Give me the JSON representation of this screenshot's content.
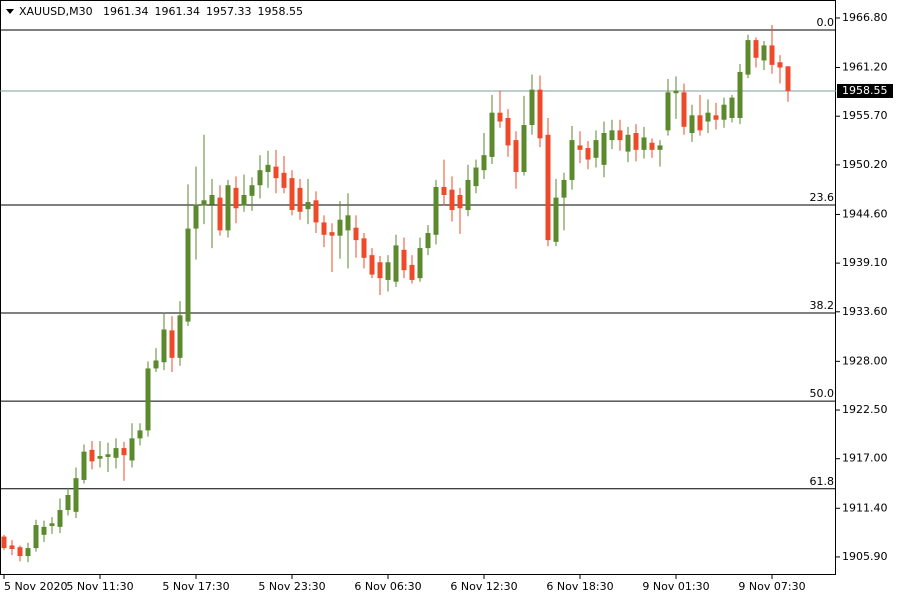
{
  "chart_data": {
    "type": "candlestick",
    "symbol": "XAUUSD,M30",
    "header_values": [
      1961.34,
      1961.34,
      1957.33,
      1958.55
    ],
    "categories": [
      "5 Nov 2020",
      null,
      null,
      null,
      null,
      null,
      null,
      null,
      null,
      null,
      null,
      null,
      "5 Nov 11:30",
      null,
      null,
      null,
      null,
      null,
      null,
      null,
      null,
      null,
      null,
      null,
      "5 Nov 17:30",
      null,
      null,
      null,
      null,
      null,
      null,
      null,
      null,
      null,
      null,
      null,
      "5 Nov 23:30",
      null,
      null,
      null,
      null,
      null,
      null,
      null,
      null,
      null,
      null,
      null,
      "6 Nov 06:30",
      null,
      null,
      null,
      null,
      null,
      null,
      null,
      null,
      null,
      null,
      null,
      "6 Nov 12:30",
      null,
      null,
      null,
      null,
      null,
      null,
      null,
      null,
      null,
      null,
      null,
      "6 Nov 18:30",
      null,
      null,
      null,
      null,
      null,
      null,
      null,
      null,
      null,
      null,
      null,
      "9 Nov 01:30",
      null,
      null,
      null,
      null,
      null,
      null,
      null,
      null,
      null,
      null,
      null,
      "9 Nov 07:30",
      null,
      null
    ],
    "open": [
      1908.2,
      1907.2,
      1907.0,
      1906.0,
      1906.9,
      1908.4,
      1909.4,
      1909.3,
      1911.2,
      1911.0,
      1914.6,
      1918.0,
      1917.0,
      1917.2,
      1917.1,
      1918.2,
      1916.8,
      1919.3,
      1920.2,
      1927.2,
      1927.9,
      1931.5,
      1928.4,
      1932.5,
      1943.0,
      1945.6,
      1945.7,
      1946.5,
      1942.8,
      1947.6,
      1945.6,
      1946.7,
      1947.9,
      1949.4,
      1950.0,
      1949.3,
      1948.7,
      1947.6,
      1945.2,
      1946.2,
      1943.7,
      1942.6,
      1942.2,
      1942.8,
      1943.1,
      1941.9,
      1940.0,
      1939.2,
      1937.2,
      1937.0,
      1940.6,
      1938.9,
      1937.4,
      1940.8,
      1942.3,
      1947.7,
      1947.4,
      1946.8,
      1945.1,
      1947.8,
      1949.6,
      1951.1,
      1956.1,
      1955.5,
      1953.0,
      1949.4,
      1954.7,
      1958.7,
      1953.6,
      1941.5,
      1946.5,
      1948.5,
      1952.4,
      1952.1,
      1951.0,
      1950.2,
      1953.0,
      1954.1,
      1951.7,
      1953.8,
      1951.9,
      1952.7,
      1951.9,
      1954.1,
      1958.3,
      1958.4,
      1953.8,
      1955.8,
      1955.1,
      1955.8,
      1955.3,
      1955.5,
      1955.5,
      1960.4,
      1964.3,
      1962.0,
      1963.7,
      1961.8,
      1961.34
    ],
    "high": [
      1908.4,
      1907.8,
      1907.2,
      1907.5,
      1910.1,
      1910.0,
      1910.4,
      1912.5,
      1913.7,
      1916.0,
      1918.6,
      1919.0,
      1919.0,
      1918.8,
      1919.3,
      1918.9,
      1921.0,
      1921.0,
      1928.0,
      1929.5,
      1933.5,
      1933.1,
      1934.8,
      1948.0,
      1950.0,
      1953.6,
      1948.6,
      1947.9,
      1948.5,
      1948.9,
      1949.1,
      1948.8,
      1951.3,
      1951.8,
      1951.9,
      1951.2,
      1949.6,
      1948.6,
      1948.6,
      1947.2,
      1944.5,
      1943.6,
      1946.1,
      1947.0,
      1944.5,
      1942.5,
      1940.8,
      1939.9,
      1940.0,
      1942.3,
      1942.0,
      1940.0,
      1942.0,
      1943.4,
      1948.5,
      1950.8,
      1948.9,
      1947.6,
      1950.2,
      1950.8,
      1953.8,
      1958.1,
      1958.6,
      1956.5,
      1954.0,
      1958.0,
      1960.4,
      1960.3,
      1955.5,
      1948.6,
      1949.3,
      1954.6,
      1954.0,
      1952.9,
      1954.1,
      1955.1,
      1955.3,
      1955.3,
      1954.5,
      1954.8,
      1954.5,
      1953.2,
      1953.0,
      1959.9,
      1960.2,
      1959.4,
      1957.0,
      1958.1,
      1957.6,
      1957.2,
      1957.8,
      1958.1,
      1961.6,
      1964.9,
      1964.6,
      1964.2,
      1966.0,
      1962.6,
      1961.34
    ],
    "low": [
      1906.7,
      1906.1,
      1905.4,
      1905.3,
      1906.5,
      1907.6,
      1908.5,
      1908.6,
      1910.6,
      1910.3,
      1914.2,
      1915.8,
      1916.0,
      1915.5,
      1915.9,
      1914.5,
      1916.0,
      1918.5,
      1919.5,
      1926.8,
      1927.0,
      1926.8,
      1927.5,
      1932.0,
      1939.5,
      1943.5,
      1940.8,
      1942.2,
      1942.0,
      1943.6,
      1944.9,
      1945.0,
      1946.4,
      1947.6,
      1947.0,
      1947.0,
      1944.5,
      1944.0,
      1943.5,
      1942.5,
      1940.9,
      1938.1,
      1939.6,
      1938.5,
      1939.7,
      1938.5,
      1937.4,
      1935.5,
      1935.9,
      1936.4,
      1937.4,
      1936.8,
      1937.0,
      1940.0,
      1941.2,
      1945.6,
      1943.8,
      1942.4,
      1944.4,
      1947.0,
      1948.6,
      1950.3,
      1954.4,
      1951.1,
      1947.5,
      1949.0,
      1953.6,
      1952.2,
      1941.0,
      1941.0,
      1942.8,
      1947.4,
      1950.4,
      1949.7,
      1949.9,
      1948.8,
      1952.0,
      1951.8,
      1950.5,
      1950.6,
      1950.9,
      1951.0,
      1950.0,
      1953.5,
      1955.4,
      1953.6,
      1952.8,
      1953.5,
      1953.8,
      1954.2,
      1954.4,
      1955.0,
      1954.8,
      1960.0,
      1961.2,
      1960.9,
      1960.5,
      1959.4,
      1957.33
    ],
    "close": [
      1906.9,
      1906.8,
      1906.0,
      1906.9,
      1909.5,
      1909.3,
      1909.7,
      1911.2,
      1912.9,
      1914.8,
      1917.8,
      1916.7,
      1917.3,
      1917.5,
      1918.2,
      1917.4,
      1919.3,
      1920.2,
      1927.2,
      1928.1,
      1931.6,
      1928.4,
      1933.2,
      1943.0,
      1945.7,
      1946.2,
      1946.8,
      1942.8,
      1947.9,
      1945.3,
      1946.8,
      1947.9,
      1949.6,
      1950.2,
      1948.7,
      1947.6,
      1945.1,
      1944.9,
      1946.0,
      1943.7,
      1942.3,
      1942.2,
      1944.0,
      1944.5,
      1941.7,
      1939.7,
      1937.8,
      1937.4,
      1939.2,
      1941.1,
      1938.3,
      1937.2,
      1940.8,
      1942.5,
      1947.7,
      1946.8,
      1945.1,
      1945.3,
      1948.5,
      1949.9,
      1951.3,
      1956.1,
      1955.1,
      1952.4,
      1949.4,
      1954.7,
      1958.7,
      1953.2,
      1941.7,
      1946.5,
      1948.5,
      1953.0,
      1951.9,
      1950.8,
      1953.0,
      1953.8,
      1954.1,
      1953.0,
      1953.6,
      1951.9,
      1953.3,
      1951.9,
      1952.4,
      1958.4,
      1958.6,
      1954.5,
      1955.8,
      1954.1,
      1956.1,
      1955.3,
      1957.0,
      1957.8,
      1960.7,
      1964.3,
      1962.3,
      1963.7,
      1961.5,
      1961.2,
      1958.55
    ],
    "up_color": "#5a8a2b",
    "down_color": "#ee4a2a",
    "ylim": [
      1903.86,
      1968.83
    ],
    "yticks": [
      {
        "value": 1966.8,
        "label": "1966.80"
      },
      {
        "value": 1961.2,
        "label": "1961.20"
      },
      {
        "value": 1955.7,
        "label": "1955.70"
      },
      {
        "value": 1950.2,
        "label": "1950.20"
      },
      {
        "value": 1944.6,
        "label": "1944.60"
      },
      {
        "value": 1939.1,
        "label": "1939.10"
      },
      {
        "value": 1933.6,
        "label": "1933.60"
      },
      {
        "value": 1928.0,
        "label": "1928.00"
      },
      {
        "value": 1922.5,
        "label": "1922.50"
      },
      {
        "value": 1917.0,
        "label": "1917.00"
      },
      {
        "value": 1911.4,
        "label": "1911.40"
      },
      {
        "value": 1905.9,
        "label": "1905.90"
      }
    ],
    "fibonacci": [
      {
        "level": {
          "value": 0,
          "label": "0.0"
        },
        "price": 1965.44
      },
      {
        "level": 23.6,
        "price": 1945.67
      },
      {
        "level": 38.2,
        "price": 1933.47
      },
      {
        "level": {
          "value": 50,
          "label": "50.0"
        },
        "price": 1923.5
      },
      {
        "level": 61.8,
        "price": 1913.6
      }
    ],
    "current_price": 1958.55
  }
}
